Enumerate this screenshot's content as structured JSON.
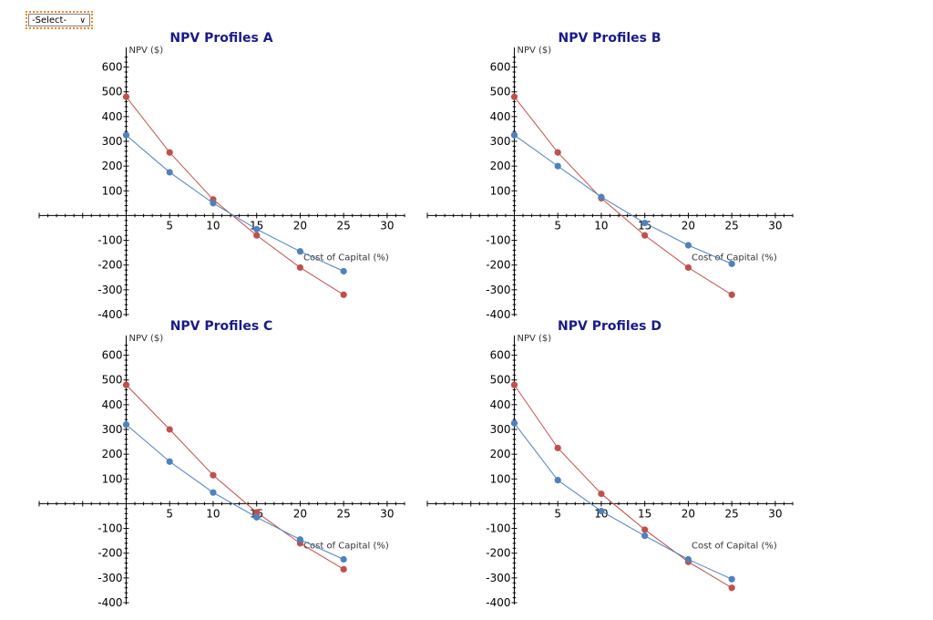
{
  "select": {
    "label": "-Select-"
  },
  "colors": {
    "series_red": "#c0504d",
    "series_blue": "#4f81bd",
    "title": "#1a1a8a",
    "axis": "#000000"
  },
  "chart_data": [
    {
      "type": "line",
      "title": "NPV Profiles A",
      "xlabel": "Cost of Capital (%)",
      "ylabel": "NPV ($)",
      "xlim": [
        -10,
        32
      ],
      "ylim": [
        -400,
        650
      ],
      "x_ticks": [
        5,
        10,
        15,
        20,
        25,
        30
      ],
      "y_ticks": [
        600,
        500,
        400,
        300,
        200,
        100,
        -100,
        -200,
        -300,
        -400
      ],
      "series": [
        {
          "name": "red",
          "color": "#c0504d",
          "x": [
            0,
            5,
            10,
            15,
            20,
            25
          ],
          "y": [
            480,
            255,
            65,
            -80,
            -210,
            -320
          ]
        },
        {
          "name": "blue",
          "color": "#4f81bd",
          "x": [
            0,
            5,
            10,
            15,
            20,
            25
          ],
          "y": [
            325,
            175,
            50,
            -55,
            -145,
            -225
          ]
        }
      ]
    },
    {
      "type": "line",
      "title": "NPV Profiles B",
      "xlabel": "Cost of Capital (%)",
      "ylabel": "NPV ($)",
      "xlim": [
        -10,
        32
      ],
      "ylim": [
        -400,
        650
      ],
      "x_ticks": [
        5,
        10,
        15,
        20,
        25,
        30
      ],
      "y_ticks": [
        600,
        500,
        400,
        300,
        200,
        100,
        -100,
        -200,
        -300,
        -400
      ],
      "series": [
        {
          "name": "red",
          "color": "#c0504d",
          "x": [
            0,
            5,
            10,
            15,
            20,
            25
          ],
          "y": [
            480,
            255,
            70,
            -80,
            -210,
            -320
          ]
        },
        {
          "name": "blue",
          "color": "#4f81bd",
          "x": [
            0,
            5,
            10,
            15,
            20,
            25
          ],
          "y": [
            325,
            200,
            75,
            -30,
            -120,
            -195
          ]
        }
      ]
    },
    {
      "type": "line",
      "title": "NPV Profiles C",
      "xlabel": "Cost of Capital (%)",
      "ylabel": "NPV ($)",
      "xlim": [
        -10,
        32
      ],
      "ylim": [
        -400,
        650
      ],
      "x_ticks": [
        5,
        10,
        15,
        20,
        25,
        30
      ],
      "y_ticks": [
        600,
        500,
        400,
        300,
        200,
        100,
        -100,
        -200,
        -300,
        -400
      ],
      "series": [
        {
          "name": "red",
          "color": "#c0504d",
          "x": [
            0,
            5,
            10,
            15,
            20,
            25
          ],
          "y": [
            480,
            300,
            115,
            -35,
            -160,
            -265
          ]
        },
        {
          "name": "blue",
          "color": "#4f81bd",
          "x": [
            0,
            5,
            10,
            15,
            20,
            25
          ],
          "y": [
            320,
            170,
            45,
            -55,
            -145,
            -225
          ]
        }
      ]
    },
    {
      "type": "line",
      "title": "NPV Profiles D",
      "xlabel": "Cost of Capital (%)",
      "ylabel": "NPV ($)",
      "xlim": [
        -10,
        32
      ],
      "ylim": [
        -400,
        650
      ],
      "x_ticks": [
        5,
        10,
        15,
        20,
        25,
        30
      ],
      "y_ticks": [
        600,
        500,
        400,
        300,
        200,
        100,
        -100,
        -200,
        -300,
        -400
      ],
      "series": [
        {
          "name": "red",
          "color": "#c0504d",
          "x": [
            0,
            5,
            10,
            15,
            20,
            25
          ],
          "y": [
            480,
            225,
            40,
            -105,
            -235,
            -340
          ]
        },
        {
          "name": "blue",
          "color": "#4f81bd",
          "x": [
            0,
            5,
            10,
            15,
            20,
            25
          ],
          "y": [
            325,
            95,
            -30,
            -130,
            -225,
            -305
          ]
        }
      ]
    }
  ]
}
